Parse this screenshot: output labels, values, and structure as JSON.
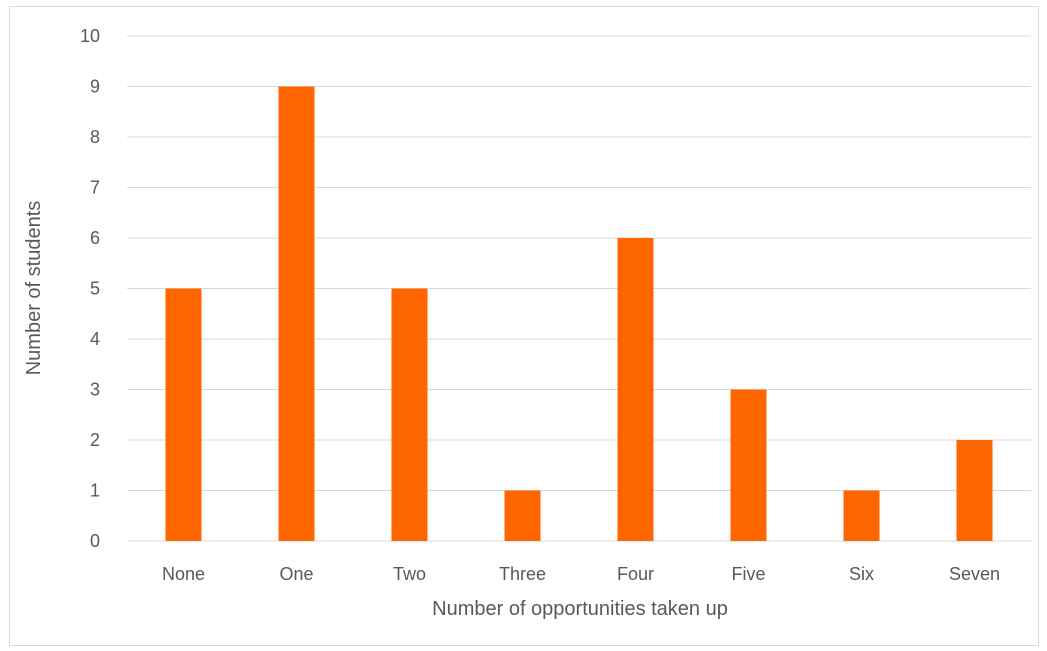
{
  "chart_data": {
    "type": "bar",
    "title": "",
    "xlabel": "Number of opportunities taken up",
    "ylabel": "Number of students",
    "categories": [
      "None",
      "One",
      "Two",
      "Three",
      "Four",
      "Five",
      "Six",
      "Seven"
    ],
    "values": [
      5,
      9,
      5,
      1,
      6,
      3,
      1,
      2
    ],
    "ylim": [
      0,
      10
    ],
    "yticks": [
      0,
      1,
      2,
      3,
      4,
      5,
      6,
      7,
      8,
      9,
      10
    ],
    "grid": true,
    "legend": "none",
    "bar_color": "#ff6600",
    "grid_color": "#d9d9d9",
    "text_color": "#595959"
  }
}
